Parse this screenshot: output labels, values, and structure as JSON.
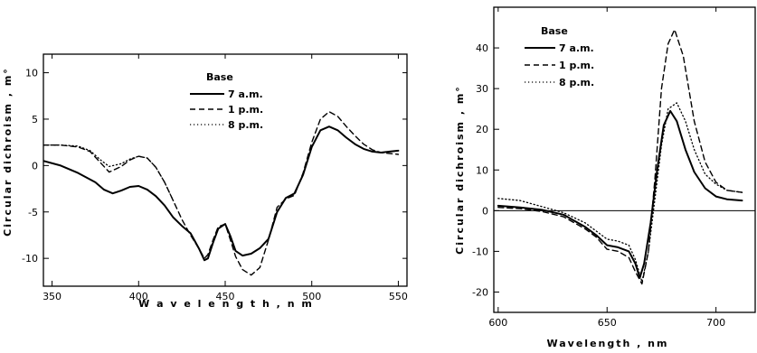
{
  "chart_data": [
    {
      "type": "line",
      "xlabel": "W a v e l e n g t h  ,  n m",
      "ylabel": "Circular  dichroism , m°",
      "xlim": [
        345,
        555
      ],
      "ylim": [
        -13,
        12
      ],
      "xticks": [
        350,
        400,
        450,
        500,
        550
      ],
      "yticks": [
        -10,
        -5,
        0,
        5,
        10
      ],
      "zero_line": false,
      "legend": {
        "title": "Base",
        "placement": "top-center",
        "entries": [
          "7 a.m.",
          "1 p.m.",
          "8 p.m."
        ]
      },
      "series": [
        {
          "name": "7 a.m.",
          "style": "solid",
          "x": [
            345,
            355,
            365,
            375,
            380,
            385,
            390,
            395,
            400,
            405,
            410,
            415,
            420,
            425,
            430,
            435,
            438,
            440,
            443,
            446,
            450,
            453,
            456,
            460,
            465,
            470,
            475,
            480,
            485,
            490,
            495,
            500,
            505,
            510,
            515,
            520,
            525,
            530,
            535,
            540,
            545,
            550
          ],
          "y": [
            0.5,
            0.0,
            -0.8,
            -1.8,
            -2.6,
            -3.0,
            -2.7,
            -2.3,
            -2.2,
            -2.6,
            -3.3,
            -4.3,
            -5.6,
            -6.5,
            -7.3,
            -9.0,
            -10.2,
            -10.0,
            -8.3,
            -6.8,
            -6.3,
            -7.6,
            -9.2,
            -9.7,
            -9.5,
            -8.9,
            -7.9,
            -5.0,
            -3.5,
            -3.0,
            -1.0,
            2.0,
            3.8,
            4.2,
            3.8,
            3.0,
            2.3,
            1.8,
            1.5,
            1.4,
            1.5,
            1.6
          ]
        },
        {
          "name": "1 p.m.",
          "style": "dashed",
          "x": [
            345,
            355,
            365,
            372,
            378,
            383,
            390,
            395,
            400,
            405,
            410,
            415,
            420,
            425,
            430,
            435,
            438,
            440,
            443,
            446,
            450,
            453,
            456,
            460,
            465,
            470,
            475,
            480,
            485,
            490,
            495,
            500,
            505,
            510,
            515,
            520,
            525,
            530,
            535,
            540,
            545,
            550
          ],
          "y": [
            2.2,
            2.2,
            2.0,
            1.5,
            0.3,
            -0.7,
            -0.1,
            0.6,
            1.0,
            0.8,
            -0.2,
            -1.8,
            -3.8,
            -5.8,
            -7.5,
            -9.0,
            -10.0,
            -9.6,
            -8.0,
            -6.6,
            -6.3,
            -8.0,
            -9.8,
            -11.2,
            -11.8,
            -11.0,
            -8.0,
            -4.5,
            -3.6,
            -3.2,
            -0.8,
            2.5,
            5.0,
            5.8,
            5.3,
            4.2,
            3.2,
            2.3,
            1.7,
            1.4,
            1.3,
            1.2
          ]
        },
        {
          "name": "8 p.m.",
          "style": "dotted",
          "x": [
            345,
            355,
            365,
            372,
            378,
            383,
            390,
            395,
            400,
            405,
            410,
            415,
            420
          ],
          "y": [
            2.2,
            2.2,
            2.1,
            1.6,
            0.6,
            -0.1,
            0.2,
            0.7,
            1.0,
            0.8,
            -0.2,
            -1.8,
            -3.8
          ]
        }
      ]
    },
    {
      "type": "line",
      "xlabel": "Wavelength , nm",
      "ylabel": "Circular  dichroism , m°",
      "xlim": [
        598,
        718
      ],
      "ylim": [
        -25,
        50
      ],
      "xticks": [
        600,
        650,
        700
      ],
      "yticks": [
        -20,
        -10,
        0,
        10,
        20,
        30,
        40
      ],
      "zero_line": true,
      "legend": {
        "title": "Base",
        "placement": "top-left",
        "entries": [
          "7 a.m.",
          "1 p.m.",
          "8 p.m."
        ]
      },
      "series": [
        {
          "name": "7 a.m.",
          "style": "solid",
          "x": [
            600,
            610,
            620,
            630,
            640,
            645,
            650,
            655,
            660,
            663,
            665,
            667,
            670,
            673,
            676,
            679,
            682,
            686,
            690,
            695,
            700,
            705,
            712
          ],
          "y": [
            1.2,
            0.8,
            0.2,
            -1.0,
            -4.0,
            -6.0,
            -8.5,
            -9.0,
            -10.0,
            -13.0,
            -16.5,
            -13.0,
            -3.0,
            10.0,
            21.0,
            24.5,
            22.0,
            15.0,
            9.5,
            5.5,
            3.5,
            2.8,
            2.5
          ]
        },
        {
          "name": "1 p.m.",
          "style": "dashed",
          "x": [
            600,
            610,
            620,
            630,
            640,
            645,
            650,
            655,
            660,
            663,
            666,
            669,
            672,
            675,
            678,
            681,
            685,
            690,
            695,
            700,
            705,
            712
          ],
          "y": [
            0.8,
            0.5,
            -0.2,
            -1.5,
            -4.5,
            -6.5,
            -9.5,
            -10.0,
            -11.5,
            -15.0,
            -18.0,
            -10.0,
            8.0,
            30.0,
            41.0,
            44.5,
            38.0,
            22.0,
            12.0,
            7.0,
            5.0,
            4.5
          ]
        },
        {
          "name": "8 p.m.",
          "style": "dotted",
          "x": [
            600,
            610,
            620,
            630,
            640,
            645,
            650,
            655,
            660,
            663,
            666,
            669,
            672,
            675,
            678,
            682,
            686,
            690,
            695,
            700,
            705,
            712
          ],
          "y": [
            3.0,
            2.5,
            1.0,
            -0.5,
            -3.0,
            -5.0,
            -7.0,
            -7.5,
            -8.5,
            -12.0,
            -17.5,
            -10.0,
            3.0,
            16.0,
            25.0,
            26.5,
            22.0,
            15.0,
            9.0,
            6.5,
            5.0,
            4.5
          ]
        }
      ]
    }
  ]
}
